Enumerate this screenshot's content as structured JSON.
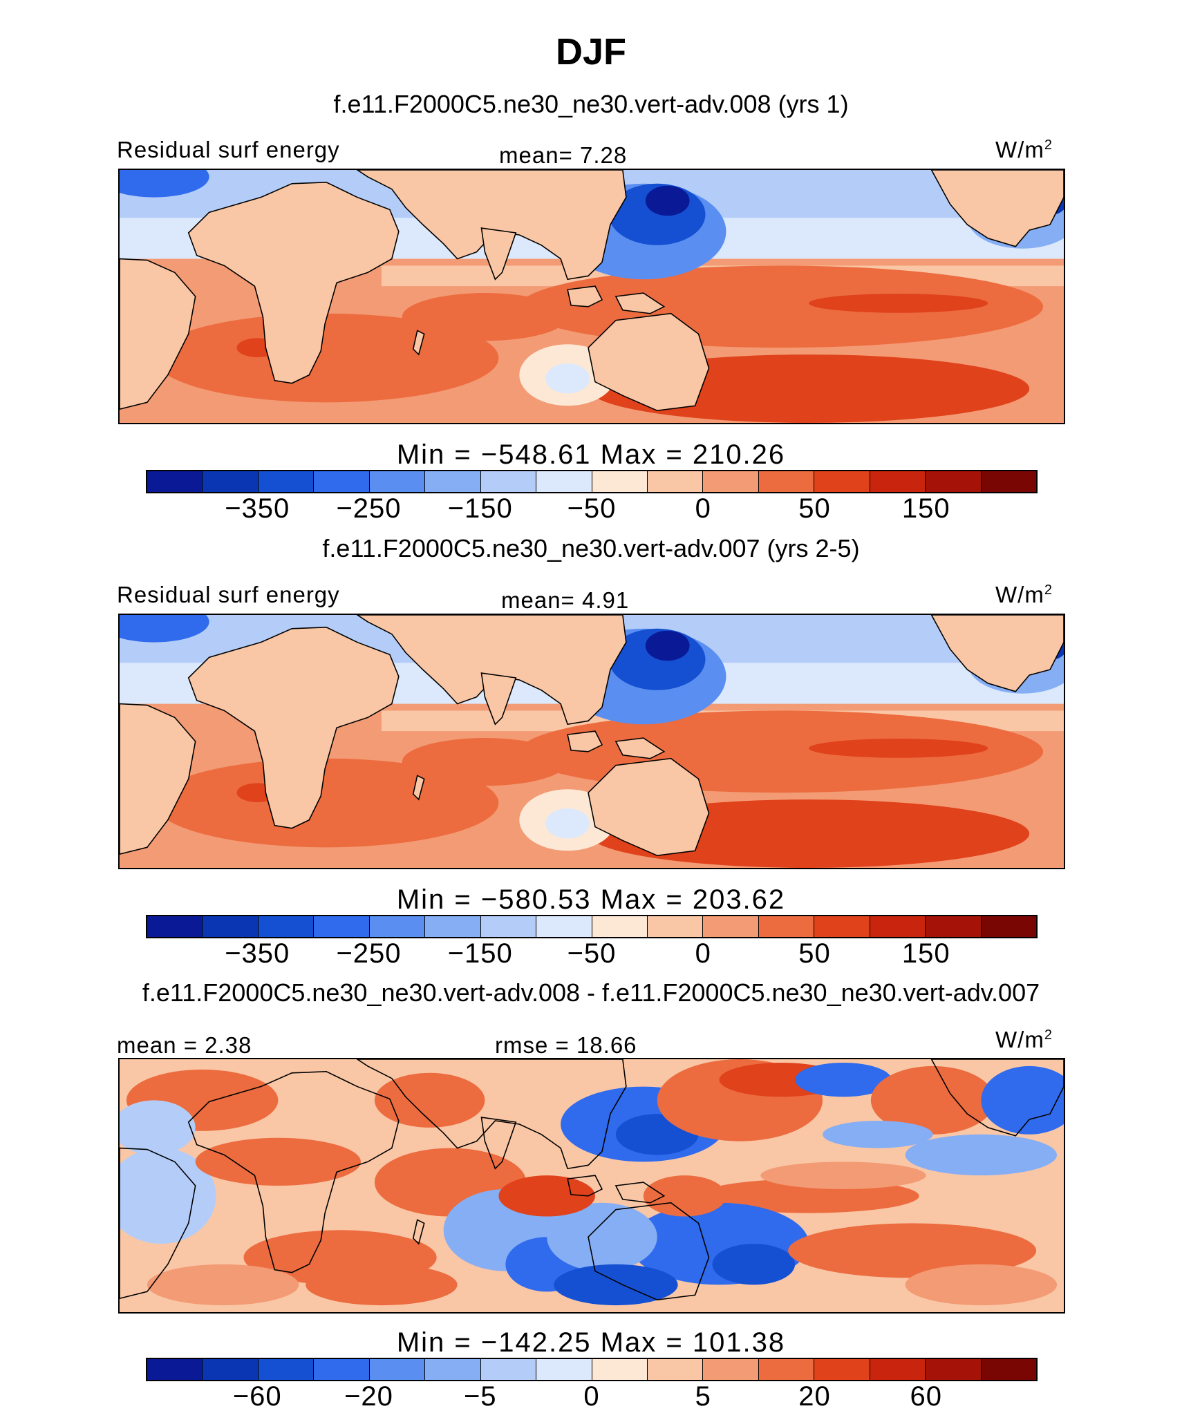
{
  "figure": {
    "title": "DJF",
    "units_prefix": "W/m",
    "units_exp": "2"
  },
  "colorbar_colors": [
    "#0a1a96",
    "#0a36b4",
    "#1550d2",
    "#2f6bec",
    "#5a8ef0",
    "#86aef4",
    "#b4cdf8",
    "#dce8fb",
    "#fde8d6",
    "#f9c7a6",
    "#f39b74",
    "#ec6c40",
    "#e0421c",
    "#c8240e",
    "#a51208",
    "#7a0604"
  ],
  "panels": [
    {
      "run_title": "f.e11.F2000C5.ne30_ne30.vert-adv.008 (yrs 1)",
      "left_label": "Residual surf energy",
      "center_label": "mean=   7.28",
      "minmax": "Min = −548.61 Max = 210.26",
      "ticks": [
        "−350",
        "−250",
        "−150",
        "−50",
        "0",
        "50",
        "150"
      ],
      "field_type": "absolute"
    },
    {
      "run_title": "f.e11.F2000C5.ne30_ne30.vert-adv.007 (yrs 2-5)",
      "left_label": "Residual surf energy",
      "center_label": "mean=   4.91",
      "minmax": "Min = −580.53 Max = 203.62",
      "ticks": [
        "−350",
        "−250",
        "−150",
        "−50",
        "0",
        "50",
        "150"
      ],
      "field_type": "absolute"
    },
    {
      "run_title": "f.e11.F2000C5.ne30_ne30.vert-adv.008 - f.e11.F2000C5.ne30_ne30.vert-adv.007",
      "left_label": "mean =   2.38",
      "center_label": "rmse =   18.66",
      "minmax": "Min = −142.25 Max = 101.38",
      "ticks": [
        "−60",
        "−20",
        "−5",
        "0",
        "5",
        "20",
        "60"
      ],
      "field_type": "difference"
    }
  ]
}
